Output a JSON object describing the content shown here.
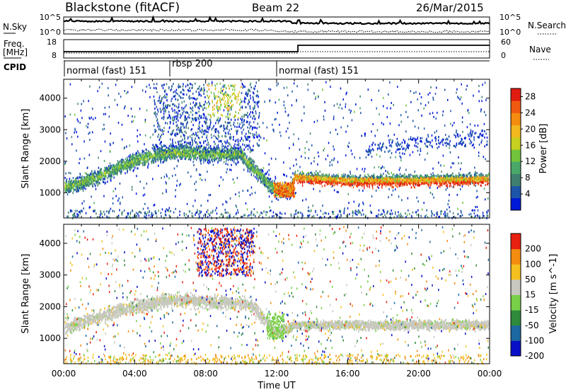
{
  "header": {
    "station": "Blackstone (fitACF)",
    "beam": "Beam 22",
    "date": "26/Mar/2015"
  },
  "noise_panel": {
    "left_label": "N.Sky",
    "right_label": "N.Search",
    "left_ticks": [
      "10^5",
      "10^0"
    ],
    "right_ticks": [
      "10^5",
      "10^0"
    ]
  },
  "freq_panel": {
    "left_label_1": "Freq.",
    "left_label_2": "[MHz]",
    "right_label": "Nave",
    "left_ticks": [
      "18",
      "8"
    ],
    "right_ticks": [
      "60",
      "0"
    ]
  },
  "cpid": {
    "label": "CPID",
    "segments": [
      {
        "name": "normal (fast) 151",
        "start_hour": 0.0,
        "end_hour": 6.0
      },
      {
        "name": "rbsp 200",
        "start_hour": 6.0,
        "end_hour": 12.0
      },
      {
        "name": "normal (fast) 151",
        "start_hour": 12.0,
        "end_hour": 24.0
      }
    ]
  },
  "chart_data": [
    {
      "type": "heatmap",
      "title": "",
      "xlabel": "Time UT",
      "ylabel": "Slant Range [km]",
      "xlim": [
        0,
        24
      ],
      "ylim": [
        200,
        4600
      ],
      "x_tick_labels": [
        "00:00",
        "04:00",
        "08:00",
        "12:00",
        "16:00",
        "20:00",
        "00:00"
      ],
      "y_ticks": [
        1000,
        2000,
        3000,
        4000
      ],
      "colorbar": {
        "label": "Power [dB]",
        "ticks": [
          4,
          8,
          12,
          16,
          20,
          24,
          28
        ],
        "range": [
          0,
          30
        ],
        "colors": [
          "#0018d8",
          "#1d55a8",
          "#3f7f70",
          "#4aa868",
          "#72c43c",
          "#c8d020",
          "#f2b820",
          "#f48c10",
          "#f05a10",
          "#e01c10"
        ]
      },
      "echo_band": [
        {
          "hour": 0.0,
          "range_km": 1200
        },
        {
          "hour": 1.0,
          "range_km": 1350
        },
        {
          "hour": 2.0,
          "range_km": 1550
        },
        {
          "hour": 3.0,
          "range_km": 1800
        },
        {
          "hour": 4.0,
          "range_km": 2050
        },
        {
          "hour": 5.0,
          "range_km": 2200
        },
        {
          "hour": 6.0,
          "range_km": 2300
        },
        {
          "hour": 7.0,
          "range_km": 2300
        },
        {
          "hour": 8.0,
          "range_km": 2250
        },
        {
          "hour": 9.0,
          "range_km": 2250
        },
        {
          "hour": 10.0,
          "range_km": 2250
        },
        {
          "hour": 11.0,
          "range_km": 1600
        },
        {
          "hour": 12.0,
          "range_km": 1050
        },
        {
          "hour": 12.8,
          "range_km": 1100
        },
        {
          "hour": 13.0,
          "range_km": 1400
        },
        {
          "hour": 16.0,
          "range_km": 1300
        },
        {
          "hour": 20.0,
          "range_km": 1300
        },
        {
          "hour": 24.0,
          "range_km": 1350
        }
      ]
    },
    {
      "type": "heatmap",
      "title": "",
      "xlabel": "Time UT",
      "ylabel": "Slant Range [km]",
      "xlim": [
        0,
        24
      ],
      "ylim": [
        200,
        4600
      ],
      "x_tick_labels": [
        "00:00",
        "04:00",
        "08:00",
        "12:00",
        "16:00",
        "20:00",
        "00:00"
      ],
      "y_ticks": [
        1000,
        2000,
        3000,
        4000
      ],
      "colorbar": {
        "label": "Velocity [m s^-1]",
        "ticks": [
          200,
          100,
          50,
          15,
          -15,
          -50,
          -100,
          -200
        ],
        "range": [
          -250,
          250
        ],
        "colors": [
          "#0a10c8",
          "#1c68a0",
          "#2f8a3c",
          "#78d048",
          "#c8c8c0",
          "#f4c020",
          "#f48c10",
          "#e82010"
        ]
      },
      "ground_scatter_band": [
        {
          "hour": 0.0,
          "range_km": 1350
        },
        {
          "hour": 3.0,
          "range_km": 1900
        },
        {
          "hour": 6.0,
          "range_km": 2250
        },
        {
          "hour": 10.5,
          "range_km": 2100
        },
        {
          "hour": 12.0,
          "range_km": 1200
        },
        {
          "hour": 13.0,
          "range_km": 1450
        },
        {
          "hour": 24.0,
          "range_km": 1450
        }
      ]
    }
  ]
}
